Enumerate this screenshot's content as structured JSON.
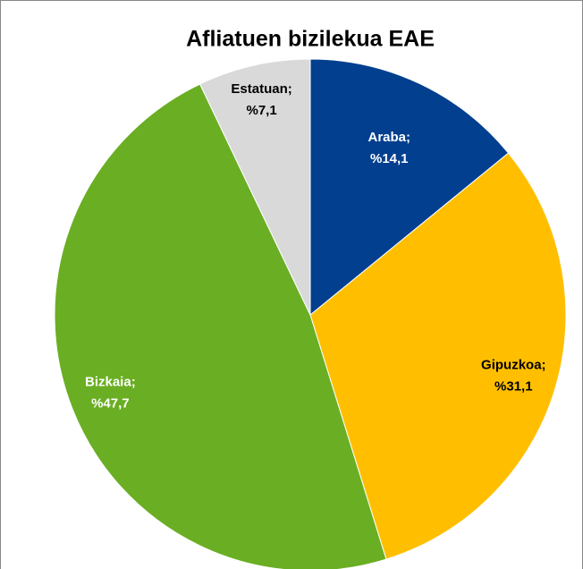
{
  "chart_data": {
    "type": "pie",
    "title": "Afliatuen bizilekua EAE",
    "categories": [
      "Araba;",
      "Gipuzkoa;",
      "Bizkaia;",
      "Estatuan;"
    ],
    "values": [
      14.1,
      31.1,
      47.7,
      7.1
    ],
    "value_labels": [
      "%14,1",
      "%31,1",
      "%47,7",
      "%7,1"
    ],
    "colors": [
      "#023f8f",
      "#ffbf00",
      "#6aae23",
      "#d9d9d9"
    ]
  }
}
